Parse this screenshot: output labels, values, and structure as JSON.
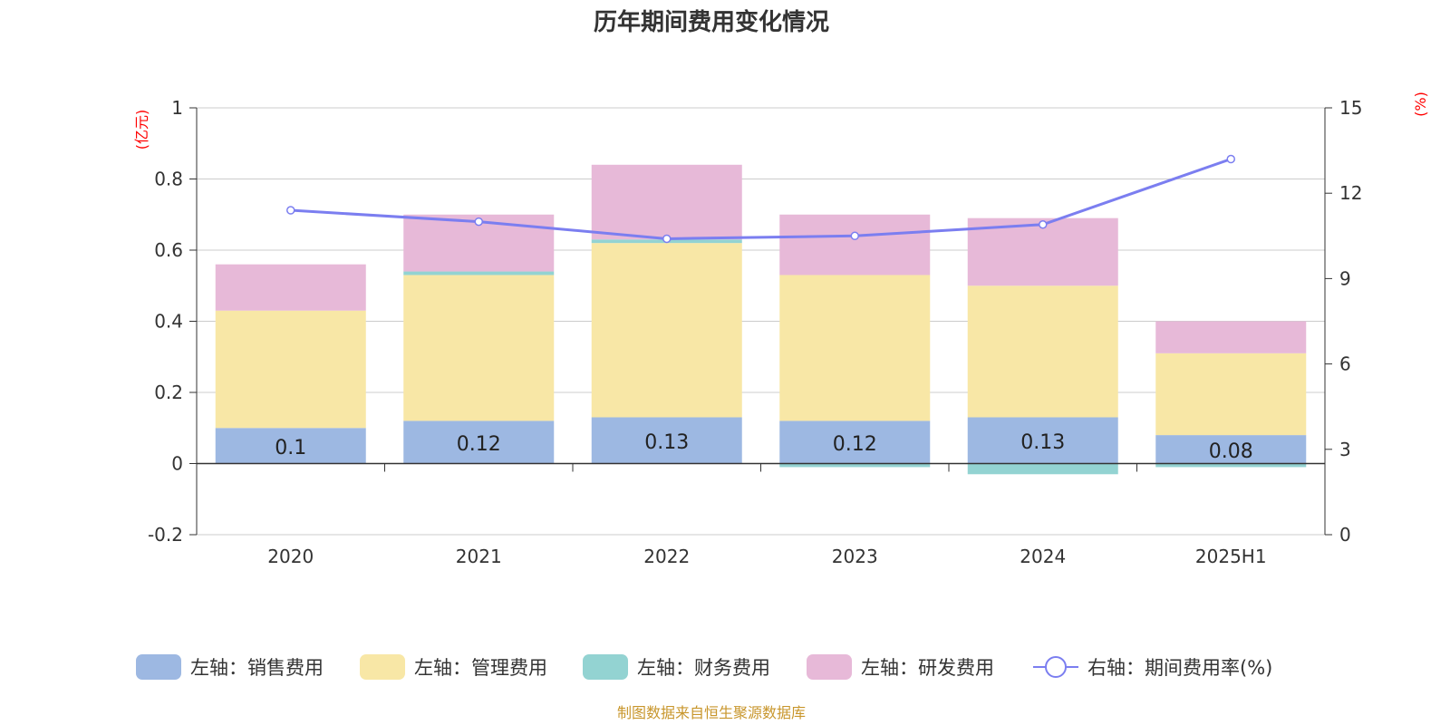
{
  "chart_data": {
    "type": "bar",
    "title": "历年期间费用变化情况",
    "categories": [
      "2020",
      "2021",
      "2022",
      "2023",
      "2024",
      "2025H1"
    ],
    "left_axis": {
      "unit": "(亿元)",
      "range": [
        -0.2,
        1
      ],
      "ticks": [
        "-0.2",
        "0",
        "0.2",
        "0.4",
        "0.6",
        "0.8",
        "1"
      ],
      "tick_values": [
        -0.2,
        0,
        0.2,
        0.4,
        0.6,
        0.8,
        1
      ]
    },
    "right_axis": {
      "unit": "(%)",
      "range": [
        0,
        15
      ],
      "ticks": [
        "0",
        "3",
        "6",
        "9",
        "12",
        "15"
      ],
      "tick_values": [
        0,
        3,
        6,
        9,
        12,
        15
      ]
    },
    "series": [
      {
        "name": "左轴：销售费用",
        "type": "bar",
        "color": "#9db8e2",
        "values": [
          0.1,
          0.12,
          0.13,
          0.12,
          0.13,
          0.08
        ],
        "labels": [
          "0.1",
          "0.12",
          "0.13",
          "0.12",
          "0.13",
          "0.08"
        ]
      },
      {
        "name": "左轴：管理费用",
        "type": "bar",
        "color": "#f8e7a6",
        "values": [
          0.33,
          0.41,
          0.49,
          0.41,
          0.37,
          0.23
        ]
      },
      {
        "name": "左轴：财务费用",
        "type": "bar",
        "color": "#93d3d2",
        "values": [
          0.0,
          0.01,
          0.01,
          -0.01,
          -0.03,
          -0.01
        ]
      },
      {
        "name": "左轴：研发费用",
        "type": "bar",
        "color": "#e7b9d8",
        "values": [
          0.13,
          0.16,
          0.21,
          0.17,
          0.19,
          0.09
        ]
      },
      {
        "name": "右轴：期间费用率(%)",
        "type": "line",
        "color": "#7b7ef0",
        "values": [
          11.4,
          11.0,
          10.4,
          10.5,
          10.9,
          13.2
        ]
      }
    ],
    "legend_position": "bottom",
    "grid": true
  },
  "source": "制图数据来自恒生聚源数据库"
}
